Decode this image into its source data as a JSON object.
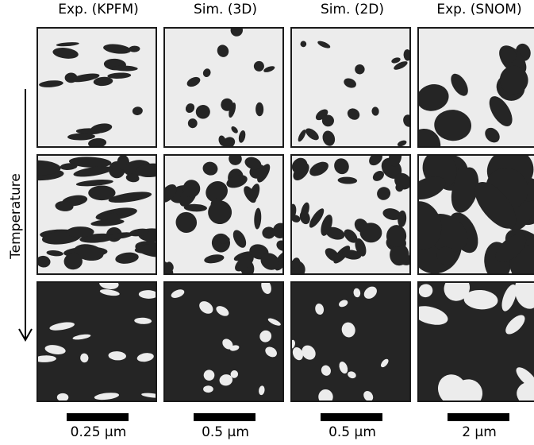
{
  "columns": [
    {
      "title": "Exp. (KPFM)",
      "scale": "0.25 µm"
    },
    {
      "title": "Sim. (3D)",
      "scale": "0.5 µm"
    },
    {
      "title": "Sim. (2D)",
      "scale": "0.5 µm"
    },
    {
      "title": "Exp. (SNOM)",
      "scale": "2 µm"
    }
  ],
  "axis": {
    "label": "Temperature"
  },
  "colors": {
    "light": "#ececec",
    "dark": "#252525",
    "border": "#1a1a1a"
  },
  "rows": [
    {
      "fraction_dark": 0.18
    },
    {
      "fraction_dark": 0.5
    },
    {
      "fraction_dark": 0.85
    }
  ]
}
